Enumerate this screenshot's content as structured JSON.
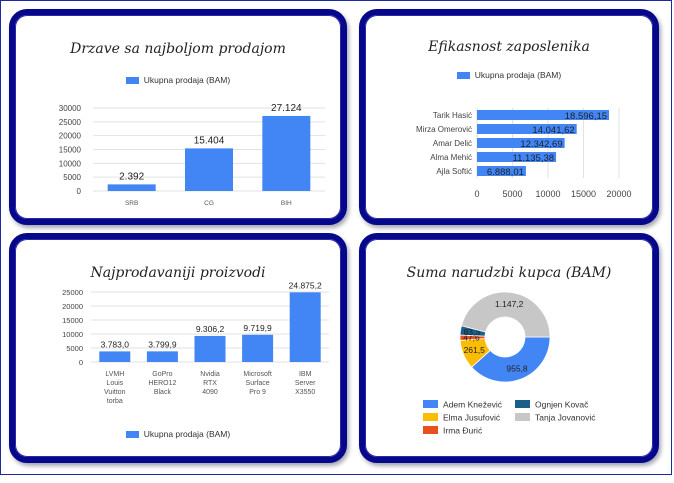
{
  "colors": {
    "card_border": "#07078c",
    "series_blue": "#4285f4",
    "frame": "#1f2aa0"
  },
  "cards": [
    {
      "title": "Drzave sa najboljom prodajom",
      "legend": "Ukupna prodaja (BAM)",
      "chart_data": {
        "type": "bar",
        "categories": [
          "SRB",
          "CG",
          "BIH"
        ],
        "values": [
          2392,
          15404,
          27124
        ],
        "value_labels": [
          "2.392",
          "15.404",
          "27.124"
        ],
        "series": [
          {
            "name": "Ukupna prodaja (BAM)",
            "values": [
              2392,
              15404,
              27124
            ]
          }
        ],
        "yticks": [
          "0",
          "5000",
          "10000",
          "15000",
          "20000",
          "25000",
          "30000"
        ],
        "ylim": [
          0,
          30000
        ],
        "grid": true,
        "legend_position": "top"
      }
    },
    {
      "title": "Efikasnost zaposlenika",
      "legend": "Ukupna prodaja (BAM)",
      "chart_data": {
        "type": "bar",
        "orientation": "horizontal",
        "categories": [
          "Tarik Hasić",
          "Mirza Omerović",
          "Amar Delić",
          "Alma Mehić",
          "Ajla Softić"
        ],
        "values": [
          18596.15,
          14041.62,
          12342.69,
          11135.38,
          6888.01
        ],
        "value_labels": [
          "18.596,15",
          "14.041,62",
          "12.342,69",
          "11.135,38",
          "6.888,01"
        ],
        "series": [
          {
            "name": "Ukupna prodaja (BAM)",
            "values": [
              18596.15,
              14041.62,
              12342.69,
              11135.38,
              6888.01
            ]
          }
        ],
        "xticks": [
          "0",
          "5000",
          "10000",
          "15000",
          "20000"
        ],
        "xlim": [
          0,
          20000
        ],
        "grid": true,
        "legend_position": "top"
      }
    },
    {
      "title": "Najprodavaniji proizvodi",
      "legend": "Ukupna prodaja (BAM)",
      "chart_data": {
        "type": "bar",
        "categories": [
          [
            "LVMH",
            "Louis",
            "Vuitton",
            "torba"
          ],
          [
            "GoPro",
            "HERO12",
            "Black"
          ],
          [
            "Nvidia",
            "RTX",
            "4090"
          ],
          [
            "Microsoft",
            "Surface",
            "Pro 9"
          ],
          [
            "IBM",
            "Server",
            "X3550"
          ]
        ],
        "values": [
          3783.0,
          3799.9,
          9306.2,
          9719.9,
          24875.2
        ],
        "value_labels": [
          "3.783,0",
          "3.799,9",
          "9.306,2",
          "9.719,9",
          "24.875,2"
        ],
        "series": [
          {
            "name": "Ukupna prodaja (BAM)",
            "values": [
              3783.0,
              3799.9,
              9306.2,
              9719.9,
              24875.2
            ]
          }
        ],
        "yticks": [
          "0",
          "5000",
          "10000",
          "15000",
          "20000",
          "25000"
        ],
        "ylim": [
          0,
          25000
        ],
        "grid": true,
        "legend_position": "bottom"
      }
    },
    {
      "title": "Suma narudzbi kupca (BAM)",
      "chart_data": {
        "type": "pie",
        "donut": true,
        "labels": [
          "Adem Knežević",
          "Elma Jusufović",
          "Irma Đurić",
          "Ognjen Kovač",
          "Tanja Jovanović"
        ],
        "values": [
          955.8,
          261.5,
          47.6,
          83.3,
          1147.2
        ],
        "value_labels": [
          "955,8",
          "261,5",
          "47,6",
          "83,3",
          "1.147,2"
        ],
        "colors": [
          "#4285f4",
          "#fbbc04",
          "#e8501d",
          "#1a5e8a",
          "#c7c7c7"
        ],
        "legend_position": "bottom"
      }
    }
  ]
}
